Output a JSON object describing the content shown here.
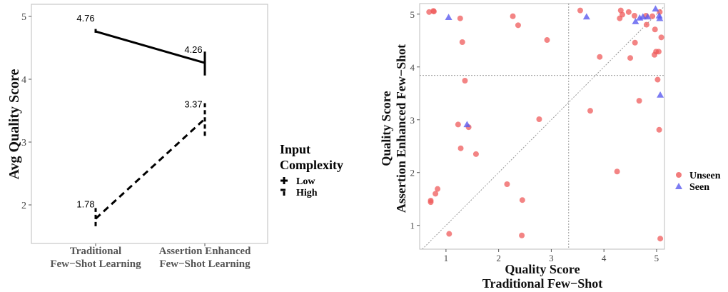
{
  "chart_data": [
    {
      "type": "line",
      "xlabel": "",
      "ylabel": "Avg Quality Score",
      "categories": [
        "Traditional\nFew−Shot Learning",
        "Assertion Enhanced\nFew−Shot Learning"
      ],
      "ylim": [
        1.55,
        5.1
      ],
      "yticks": [
        2,
        3,
        4,
        5
      ],
      "grid": false,
      "legend": {
        "title": "Input\nComplexity",
        "position": "right",
        "entries": [
          {
            "label": "Low",
            "dash": "solid"
          },
          {
            "label": "High",
            "dash": "dashed"
          }
        ]
      },
      "series": [
        {
          "name": "Low",
          "values": [
            4.76,
            4.26
          ],
          "labels": [
            "4.76",
            "4.26"
          ],
          "err_low": [
            4.74,
            4.06
          ],
          "err_high": [
            4.8,
            4.44
          ],
          "dash": "solid"
        },
        {
          "name": "High",
          "values": [
            1.78,
            3.37
          ],
          "labels": [
            "1.78",
            "3.37"
          ],
          "err_low": [
            1.66,
            3.1
          ],
          "err_high": [
            1.95,
            3.62
          ],
          "dash": "dashed"
        }
      ]
    },
    {
      "type": "scatter",
      "xlabel": "Quality Score\nTraditional Few−Shot",
      "ylabel": "Quality Score\nAssertion Enhanced Few−Shot",
      "xlim": [
        0.5,
        5.15
      ],
      "ylim": [
        0.55,
        5.2
      ],
      "xticks": [
        1,
        2,
        3,
        4,
        5
      ],
      "yticks": [
        1,
        2,
        3,
        4,
        5
      ],
      "grid": false,
      "reference_lines": {
        "diagonal": true,
        "vline": 3.33,
        "hline": 3.84
      },
      "legend": {
        "position": "right",
        "entries": [
          {
            "label": "Unseen",
            "color": "#ef5b5b",
            "shape": "circle"
          },
          {
            "label": "Seen",
            "color": "#5b5bef",
            "shape": "triangle"
          }
        ]
      },
      "series": [
        {
          "name": "Unseen",
          "color": "#ef5b5b",
          "shape": "circle",
          "points": [
            [
              0.68,
              5.04
            ],
            [
              0.76,
              5.06
            ],
            [
              0.77,
              5.05
            ],
            [
              1.27,
              4.92
            ],
            [
              1.31,
              4.47
            ],
            [
              2.27,
              4.96
            ],
            [
              2.37,
              4.79
            ],
            [
              2.92,
              4.51
            ],
            [
              3.55,
              5.07
            ],
            [
              4.32,
              5.07
            ],
            [
              4.35,
              4.99
            ],
            [
              4.47,
              5.04
            ],
            [
              4.58,
              4.97
            ],
            [
              4.3,
              4.92
            ],
            [
              4.8,
              4.97
            ],
            [
              4.92,
              4.96
            ],
            [
              4.97,
              4.71
            ],
            [
              5.06,
              5.04
            ],
            [
              4.81,
              4.8
            ],
            [
              3.92,
              4.19
            ],
            [
              4.5,
              4.17
            ],
            [
              4.59,
              4.46
            ],
            [
              4.99,
              4.29
            ],
            [
              5.04,
              4.29
            ],
            [
              4.96,
              4.23
            ],
            [
              5.09,
              4.56
            ],
            [
              1.36,
              3.74
            ],
            [
              5.02,
              3.76
            ],
            [
              1.23,
              2.91
            ],
            [
              1.43,
              2.86
            ],
            [
              2.77,
              3.01
            ],
            [
              3.74,
              3.17
            ],
            [
              4.67,
              3.36
            ],
            [
              5.05,
              2.81
            ],
            [
              1.28,
              2.46
            ],
            [
              1.57,
              2.35
            ],
            [
              2.16,
              1.78
            ],
            [
              2.45,
              1.48
            ],
            [
              0.84,
              1.69
            ],
            [
              0.8,
              1.6
            ],
            [
              0.71,
              1.47
            ],
            [
              0.71,
              1.44
            ],
            [
              1.06,
              0.84
            ],
            [
              2.44,
              0.81
            ],
            [
              4.25,
              2.02
            ],
            [
              5.07,
              0.75
            ]
          ]
        },
        {
          "name": "Seen",
          "color": "#5b5bef",
          "shape": "triangle",
          "points": [
            [
              1.05,
              4.94
            ],
            [
              3.67,
              4.95
            ],
            [
              4.6,
              4.86
            ],
            [
              4.68,
              4.93
            ],
            [
              4.74,
              4.95
            ],
            [
              4.83,
              4.95
            ],
            [
              4.98,
              5.1
            ],
            [
              5.05,
              4.97
            ],
            [
              5.06,
              4.92
            ],
            [
              5.07,
              3.47
            ],
            [
              1.4,
              2.91
            ]
          ]
        }
      ]
    }
  ]
}
